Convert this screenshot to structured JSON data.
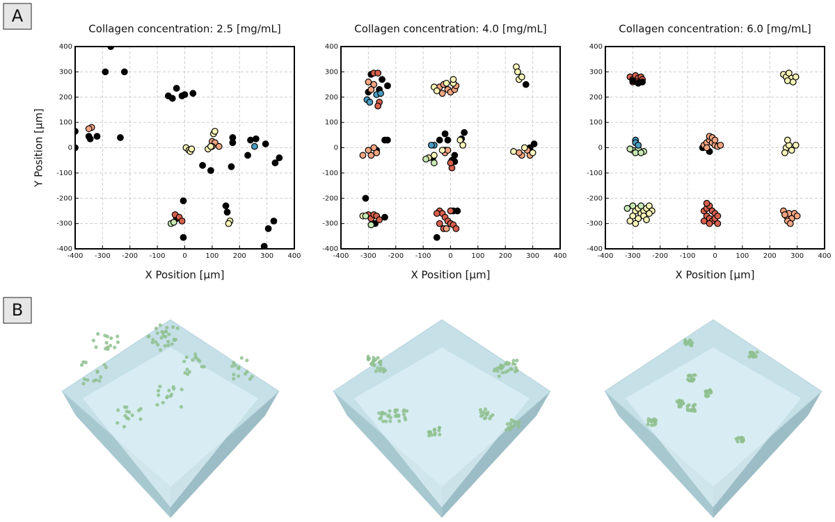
{
  "panels": {
    "a": "A",
    "b": "B"
  },
  "chart_data": [
    {
      "type": "scatter",
      "title": "Collagen concentration: 2.5 [mg/mL]",
      "x_label": "X Position [μm]",
      "y_label": "Y Position [μm]",
      "xlim": [
        -400,
        400
      ],
      "ylim": [
        -400,
        400
      ],
      "xticks": [
        -400,
        -300,
        -200,
        -100,
        0,
        100,
        200,
        300,
        400
      ],
      "yticks": [
        -400,
        -300,
        -200,
        -100,
        0,
        100,
        200,
        300,
        400
      ],
      "grid": true,
      "series": [
        {
          "color": "#000000",
          "x": [
            -400,
            -400,
            -350,
            -345,
            -320,
            -290,
            -220,
            -270,
            -235,
            -60,
            -45,
            -30,
            -10,
            0,
            30,
            -5,
            -30,
            -5,
            65,
            95,
            150,
            155,
            170,
            175,
            175,
            230,
            240,
            260,
            295,
            330,
            345,
            290,
            305,
            325
          ],
          "values": [
            65,
            0,
            45,
            35,
            45,
            300,
            300,
            400,
            40,
            205,
            195,
            235,
            205,
            210,
            215,
            -210,
            -280,
            -355,
            -70,
            -90,
            -230,
            -255,
            -75,
            20,
            40,
            -30,
            30,
            35,
            15,
            -60,
            -40,
            -390,
            -320,
            -290
          ]
        },
        {
          "color": "#f4a582",
          "x": [
            -340,
            -350,
            100,
            110,
            125,
            100
          ],
          "values": [
            80,
            75,
            25,
            20,
            5,
            5
          ]
        },
        {
          "color": "#f7f4b8",
          "x": [
            5,
            15,
            20,
            25,
            85,
            95,
            105,
            110,
            165,
            160
          ],
          "values": [
            0,
            -10,
            -15,
            -5,
            -5,
            5,
            55,
            65,
            -290,
            -300
          ]
        },
        {
          "color": "#d6604d",
          "x": [
            -35,
            -20,
            -10
          ],
          "values": [
            -265,
            -275,
            -290
          ]
        },
        {
          "color": "#c7e9b4",
          "x": [
            -50,
            -40
          ],
          "values": [
            -300,
            -295
          ]
        },
        {
          "color": "#4a9bc0",
          "x": [
            255
          ],
          "values": [
            5
          ]
        }
      ]
    },
    {
      "type": "scatter",
      "title": "Collagen concentration: 4.0 [mg/mL]",
      "x_label": "X Position [μm]",
      "xlim": [
        -400,
        400
      ],
      "ylim": [
        -400,
        400
      ],
      "xticks": [
        -400,
        -300,
        -200,
        -100,
        0,
        100,
        200,
        300,
        400
      ],
      "yticks": [
        -400,
        -300,
        -200,
        -100,
        0,
        100,
        200,
        300,
        400
      ],
      "grid": true,
      "series": [
        {
          "color": "#000000",
          "x": [
            -290,
            -250,
            -260,
            -230,
            -300,
            -270,
            -240,
            -230,
            -65,
            -40,
            -20,
            -10,
            15,
            5,
            15,
            50,
            40,
            -310,
            -275,
            -240,
            -50,
            10,
            25,
            275,
            305,
            290,
            -20
          ],
          "values": [
            290,
            270,
            230,
            245,
            220,
            -10,
            30,
            30,
            -40,
            30,
            55,
            30,
            -30,
            -50,
            -55,
            60,
            35,
            -200,
            -300,
            -275,
            -355,
            -250,
            -250,
            250,
            15,
            0,
            -10
          ]
        },
        {
          "color": "#d6604d",
          "x": [
            -280,
            -265,
            -260,
            -265,
            -300,
            -290,
            -280,
            -270,
            -260,
            -40,
            -30,
            -20,
            -10,
            0,
            -40,
            -25,
            10,
            20,
            -50,
            0,
            5,
            0
          ],
          "values": [
            295,
            295,
            180,
            165,
            -265,
            -280,
            -265,
            -270,
            -285,
            -250,
            -260,
            -275,
            -290,
            -300,
            -300,
            -320,
            -305,
            -320,
            -260,
            -250,
            -80,
            -60
          ]
        },
        {
          "color": "#f4a582",
          "x": [
            -300,
            -280,
            -290,
            -40,
            -25,
            -10,
            0,
            15,
            20,
            -30,
            -300,
            -320,
            -290,
            -270,
            -280,
            -20,
            -10,
            260,
            280,
            290,
            250,
            -15
          ],
          "values": [
            260,
            250,
            230,
            240,
            250,
            230,
            220,
            230,
            245,
            215,
            -10,
            -30,
            -30,
            -20,
            0,
            -20,
            -10,
            -30,
            -10,
            -30,
            -20,
            -320
          ]
        },
        {
          "color": "#f7f4b8",
          "x": [
            -60,
            -50,
            -15,
            10,
            10,
            240,
            245,
            250,
            260,
            -80,
            -60,
            -30,
            35,
            45,
            230,
            270,
            300,
            -320
          ],
          "values": [
            240,
            225,
            255,
            255,
            270,
            320,
            300,
            270,
            280,
            -40,
            -30,
            -10,
            30,
            10,
            -15,
            0,
            -20,
            -270
          ]
        },
        {
          "color": "#4a9bc0",
          "x": [
            -305,
            -295,
            -270,
            -255,
            -60,
            -70
          ],
          "values": [
            190,
            180,
            210,
            215,
            10,
            10
          ]
        },
        {
          "color": "#c7e9b4",
          "x": [
            -310,
            -60,
            -90,
            -290
          ],
          "values": [
            -270,
            -60,
            -45,
            -305
          ]
        }
      ]
    },
    {
      "type": "scatter",
      "title": "Collagen concentration: 6.0 [mg/mL]",
      "x_label": "X Position [μm]",
      "xlim": [
        -400,
        400
      ],
      "ylim": [
        -400,
        400
      ],
      "xticks": [
        -400,
        -300,
        -200,
        -100,
        0,
        100,
        200,
        300,
        400
      ],
      "yticks": [
        -400,
        -300,
        -200,
        -100,
        0,
        100,
        200,
        300,
        400
      ],
      "grid": true,
      "series": [
        {
          "color": "#d6604d",
          "x": [
            -310,
            -300,
            -290,
            -280,
            -270,
            -300,
            -285,
            -265,
            -40,
            -30,
            -20,
            -10,
            0,
            -30,
            -20,
            -10,
            0,
            -40,
            -20,
            10,
            10,
            -30
          ],
          "values": [
            280,
            270,
            285,
            275,
            280,
            260,
            260,
            270,
            -250,
            -240,
            -230,
            -250,
            -260,
            -270,
            -280,
            -290,
            -280,
            -290,
            -300,
            -270,
            -300,
            -220
          ]
        },
        {
          "color": "#000000",
          "x": [
            -300,
            -280,
            -265,
            -20,
            -45
          ],
          "values": [
            265,
            255,
            260,
            -15,
            0
          ]
        },
        {
          "color": "#f4a582",
          "x": [
            -40,
            -30,
            -20,
            -10,
            0,
            10,
            -30,
            -20,
            -10,
            0,
            20,
            250,
            260,
            270,
            280,
            290,
            265,
            275,
            300,
            255
          ],
          "values": [
            10,
            20,
            30,
            20,
            10,
            5,
            0,
            45,
            40,
            30,
            10,
            -250,
            -270,
            -260,
            -280,
            -260,
            -290,
            -300,
            -270,
            -265
          ]
        },
        {
          "color": "#f7f4b8",
          "x": [
            250,
            260,
            270,
            280,
            265,
            285,
            295,
            260,
            270,
            255,
            280,
            295,
            265,
            -290,
            -280,
            -270,
            -260,
            -250,
            -240,
            -230,
            -300,
            -280,
            -260,
            -250,
            -310,
            -290,
            -240
          ],
          "values": [
            290,
            280,
            295,
            275,
            265,
            260,
            280,
            0,
            10,
            -20,
            -10,
            10,
            30,
            -250,
            -240,
            -260,
            -250,
            -240,
            -230,
            -250,
            -270,
            -280,
            -270,
            -285,
            -290,
            -300,
            -260
          ]
        },
        {
          "color": "#c7e9b4",
          "x": [
            -300,
            -280,
            -260,
            -290,
            -270,
            -310,
            -320,
            -300,
            -270
          ],
          "values": [
            -10,
            -5,
            -15,
            -20,
            -20,
            -5,
            -240,
            -230,
            -230
          ]
        },
        {
          "color": "#4a9bc0",
          "x": [
            -290,
            -290,
            -280
          ],
          "values": [
            30,
            20,
            10
          ]
        }
      ]
    }
  ]
}
